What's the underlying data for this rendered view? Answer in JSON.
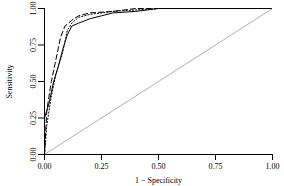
{
  "chart_data": {
    "type": "line",
    "x_label": "1 − Specificity",
    "y_label": "Sensitivity",
    "xlim": [
      0,
      1
    ],
    "ylim": [
      0,
      1
    ],
    "xticks": [
      {
        "value": 0,
        "label": "0.00"
      },
      0.25,
      {
        "value": 0.5,
        "label": "0.50"
      },
      0.75,
      {
        "value": 1,
        "label": "1.00"
      }
    ],
    "yticks": [
      {
        "value": 0,
        "label": "0.00"
      },
      0.25,
      {
        "value": 0.5,
        "label": "0.50"
      },
      0.75,
      {
        "value": 1,
        "label": "1.00"
      }
    ],
    "grid": false,
    "series": [
      {
        "color": "#000000",
        "line_style": "solid",
        "x": [
          0,
          0,
          0.02,
          0.04,
          0.06,
          0.08,
          0.1,
          0.12,
          0.15,
          0.2,
          0.25,
          0.3,
          0.4,
          0.5,
          1
        ],
        "values": [
          0,
          0.25,
          0.35,
          0.5,
          0.6,
          0.72,
          0.82,
          0.88,
          0.9,
          0.93,
          0.95,
          0.97,
          0.98,
          1,
          1
        ]
      },
      {
        "color": "#000000",
        "line_style": "dashed",
        "x": [
          0,
          0.01,
          0.03,
          0.05,
          0.07,
          0.09,
          0.12,
          0.15,
          0.2,
          0.3,
          0.4,
          1
        ],
        "values": [
          0,
          0.3,
          0.5,
          0.65,
          0.8,
          0.88,
          0.92,
          0.95,
          0.97,
          0.98,
          1,
          1
        ]
      },
      {
        "color": "#000000",
        "line_style": "dotted",
        "x": [
          0,
          0.01,
          0.03,
          0.05,
          0.08,
          0.1,
          0.12,
          0.15,
          0.2,
          0.3,
          0.5,
          1
        ],
        "values": [
          0,
          0.2,
          0.4,
          0.55,
          0.7,
          0.85,
          0.9,
          0.94,
          0.96,
          0.98,
          1,
          1
        ]
      },
      {
        "color": "#999999",
        "line_style": "solid",
        "x": [
          0,
          1
        ],
        "values": [
          0,
          1
        ]
      }
    ]
  }
}
